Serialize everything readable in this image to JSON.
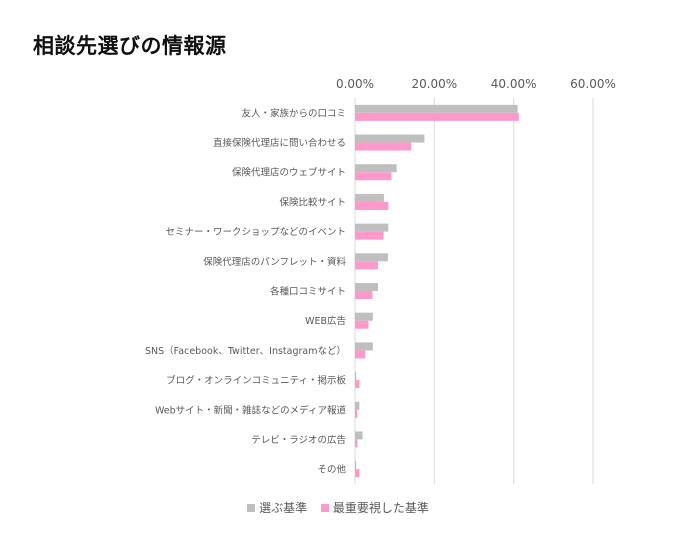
{
  "title": "相談先選びの情報源",
  "colors": {
    "series1": "#bfbfbf",
    "series2": "#ff99cc",
    "grid": "#d9d9d9",
    "text": "#595959"
  },
  "chart_data": {
    "type": "bar",
    "orientation": "horizontal",
    "title": "相談先選びの情報源",
    "xlim": [
      0,
      60
    ],
    "ticks": [
      0,
      20,
      40,
      60
    ],
    "tick_labels": [
      "0.00%",
      "20.00%",
      "40.00%",
      "60.00%"
    ],
    "grid": true,
    "legend_position": "bottom",
    "categories": [
      "友人・家族からの口コミ",
      "直接保険代理店に問い合わせる",
      "保険代理店のウェブサイト",
      "保険比較サイト",
      "セミナー・ワークショップなどのイベント",
      "保険代理店のパンフレット・資料",
      "各種口コミサイト",
      "WEB広告",
      "SNS（Facebook、Twitter、Instagramなど）",
      "ブログ・オンラインコミュニティ・掲示板",
      "Webサイト・新聞・雑誌などのメディア報道",
      "テレビ・ラジオの広告",
      "その他"
    ],
    "series": [
      {
        "name": "選ぶ基準",
        "values": [
          41,
          17.5,
          10.5,
          7.3,
          8.4,
          8.3,
          5.8,
          4.5,
          4.5,
          0.3,
          1.1,
          1.9,
          0.3
        ]
      },
      {
        "name": "最重要視した基準",
        "values": [
          41.3,
          14.2,
          9.2,
          8.4,
          7.2,
          5.8,
          4.4,
          3.4,
          2.6,
          1.1,
          0.6,
          0.6,
          1.1
        ]
      }
    ]
  }
}
